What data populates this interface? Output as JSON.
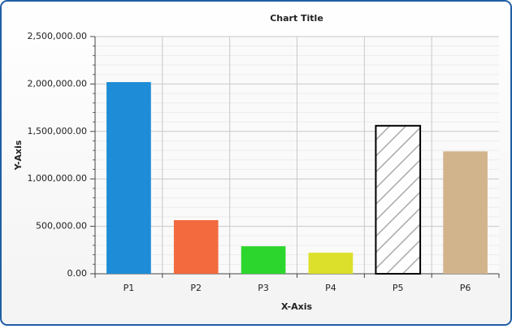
{
  "chart_data": {
    "type": "bar",
    "title": "Chart Title",
    "x_label": "X-Axis",
    "y_label": "Y-Axis",
    "categories": [
      "P1",
      "P2",
      "P3",
      "P4",
      "P5",
      "P6"
    ],
    "values": [
      2020000,
      565000,
      290000,
      222000,
      1560000,
      1290000
    ],
    "colors": [
      "#1e8cd6",
      "#f26a3e",
      "#2cd62c",
      "#dce02a",
      "#ffffff",
      "#d2b48c"
    ],
    "patterns": [
      "solid",
      "solid",
      "solid",
      "solid",
      "diagonal-hatch",
      "solid"
    ],
    "ylim": [
      0,
      2500000
    ],
    "yticks": [
      {
        "value": 0,
        "label": "0.00"
      },
      {
        "value": 500000,
        "label": "500,000.00"
      },
      {
        "value": 1000000,
        "label": "1,000,000.00"
      },
      {
        "value": 1500000,
        "label": "1,500,000.00"
      },
      {
        "value": 2000000,
        "label": "2,000,000.00"
      },
      {
        "value": 2500000,
        "label": "2,500,000.00"
      }
    ],
    "minor_per_major": 5,
    "grid": true
  }
}
